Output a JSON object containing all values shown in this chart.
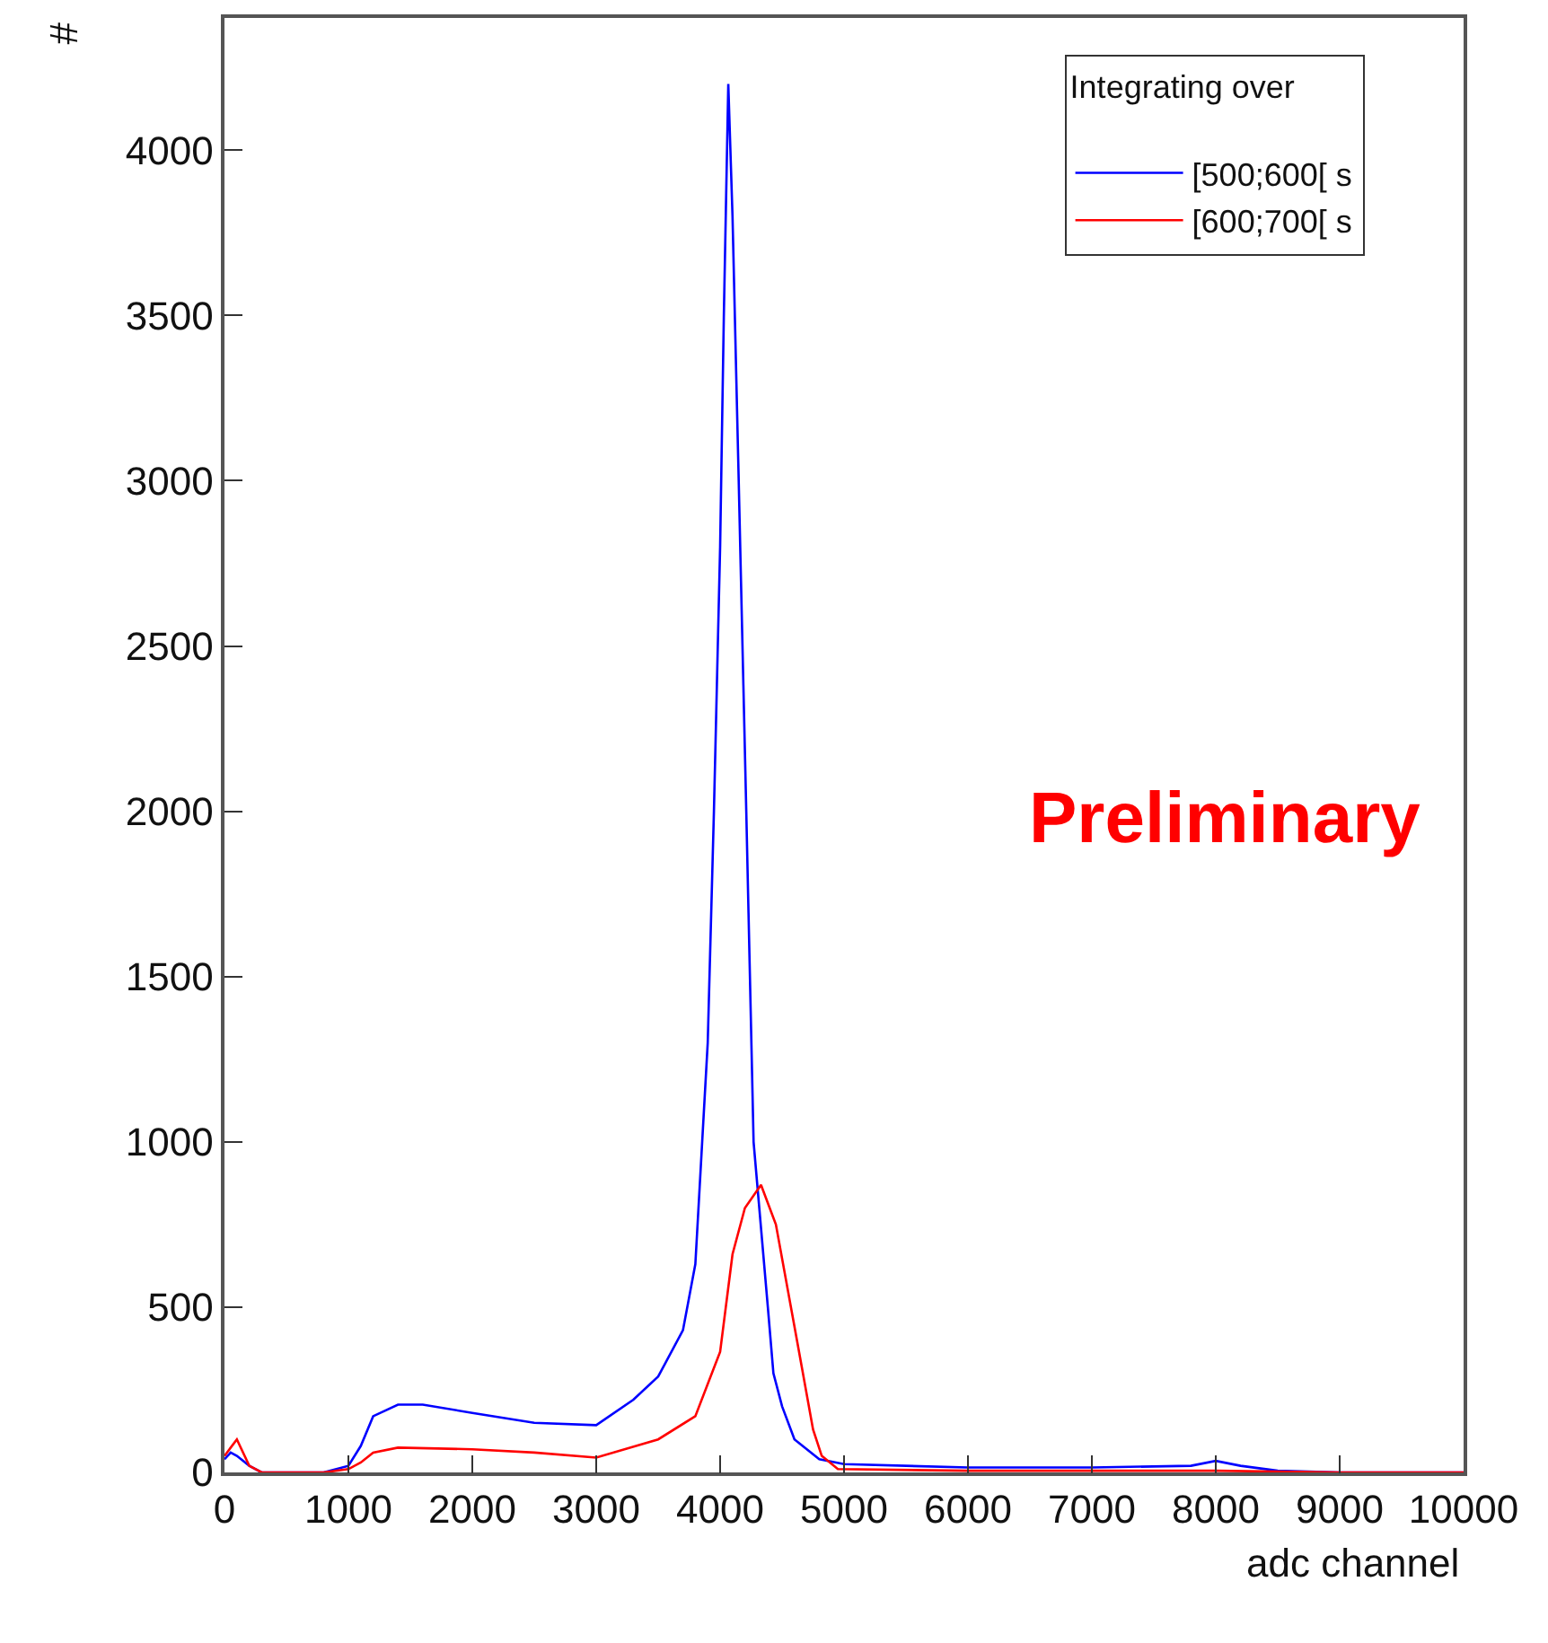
{
  "chart_data": {
    "type": "line",
    "xlabel": "adc channel",
    "ylabel": "#",
    "legend_title": "Integrating over",
    "xlim": [
      0,
      10000
    ],
    "ylim": [
      0,
      4400
    ],
    "xticks": [
      0,
      1000,
      2000,
      3000,
      4000,
      5000,
      6000,
      7000,
      8000,
      9000,
      10000
    ],
    "yticks": [
      0,
      500,
      1000,
      1500,
      2000,
      2500,
      3000,
      3500,
      4000
    ],
    "legend": "top right",
    "marker": "none",
    "line_style": "solid",
    "annotations": [
      "Preliminary"
    ],
    "series": [
      {
        "name": "[500;600[ s",
        "color": "#0000ff",
        "x": [
          0,
          50,
          100,
          200,
          300,
          800,
          1000,
          1100,
          1200,
          1400,
          1600,
          2000,
          2500,
          3000,
          3300,
          3500,
          3700,
          3800,
          3900,
          3950,
          4000,
          4030,
          4066,
          4100,
          4150,
          4211,
          4270,
          4385,
          4430,
          4500,
          4600,
          4800,
          5000,
          6000,
          7000,
          7800,
          8000,
          8200,
          8500,
          9000,
          10000
        ],
        "values": [
          40,
          60,
          50,
          20,
          0,
          0,
          20,
          80,
          170,
          205,
          205,
          180,
          150,
          143,
          220,
          290,
          430,
          630,
          1300,
          2000,
          2800,
          3500,
          4200,
          3800,
          3000,
          2000,
          1000,
          500,
          300,
          200,
          100,
          40,
          25,
          15,
          15,
          20,
          35,
          20,
          5,
          0,
          0
        ]
      },
      {
        "name": "[600;700[ s",
        "color": "#ff0000",
        "x": [
          0,
          100,
          200,
          300,
          800,
          1000,
          1100,
          1200,
          1400,
          2000,
          2500,
          3000,
          3500,
          3800,
          4000,
          4100,
          4200,
          4330,
          4450,
          4620,
          4750,
          4820,
          4950,
          6000,
          8000,
          9000,
          10000
        ],
        "values": [
          50,
          100,
          20,
          0,
          0,
          10,
          30,
          60,
          75,
          70,
          60,
          45,
          100,
          170,
          365,
          660,
          800,
          870,
          750,
          400,
          130,
          50,
          10,
          5,
          5,
          0,
          0
        ]
      }
    ]
  }
}
